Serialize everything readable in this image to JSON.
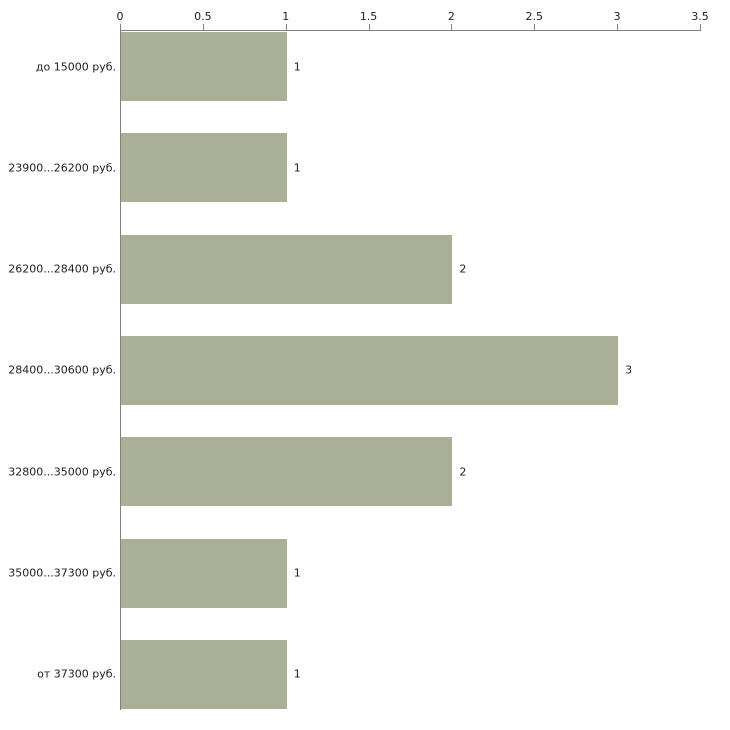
{
  "chart_data": {
    "type": "bar",
    "orientation": "horizontal",
    "title": "",
    "xlabel": "",
    "ylabel": "",
    "categories": [
      "до 15000 руб.",
      "23900...26200 руб.",
      "26200...28400 руб.",
      "28400...30600 руб.",
      "32800...35000 руб.",
      "35000...37300 руб.",
      "от 37300 руб."
    ],
    "values": [
      1,
      1,
      2,
      3,
      2,
      1,
      1
    ],
    "value_labels": [
      "1",
      "1",
      "2",
      "3",
      "2",
      "1",
      "1"
    ],
    "x_ticks": [
      0,
      0.5,
      1,
      1.5,
      2,
      2.5,
      3,
      3.5
    ],
    "x_tick_labels": [
      "0",
      "0.5",
      "1",
      "1.5",
      "2",
      "2.5",
      "3",
      "3.5"
    ],
    "xlim": [
      0,
      3.5
    ],
    "grid": false,
    "legend": false,
    "colors": {
      "bar_fill": "#a9b095",
      "axis_line": "#808080",
      "text": "#222222",
      "background": "#ffffff"
    }
  }
}
